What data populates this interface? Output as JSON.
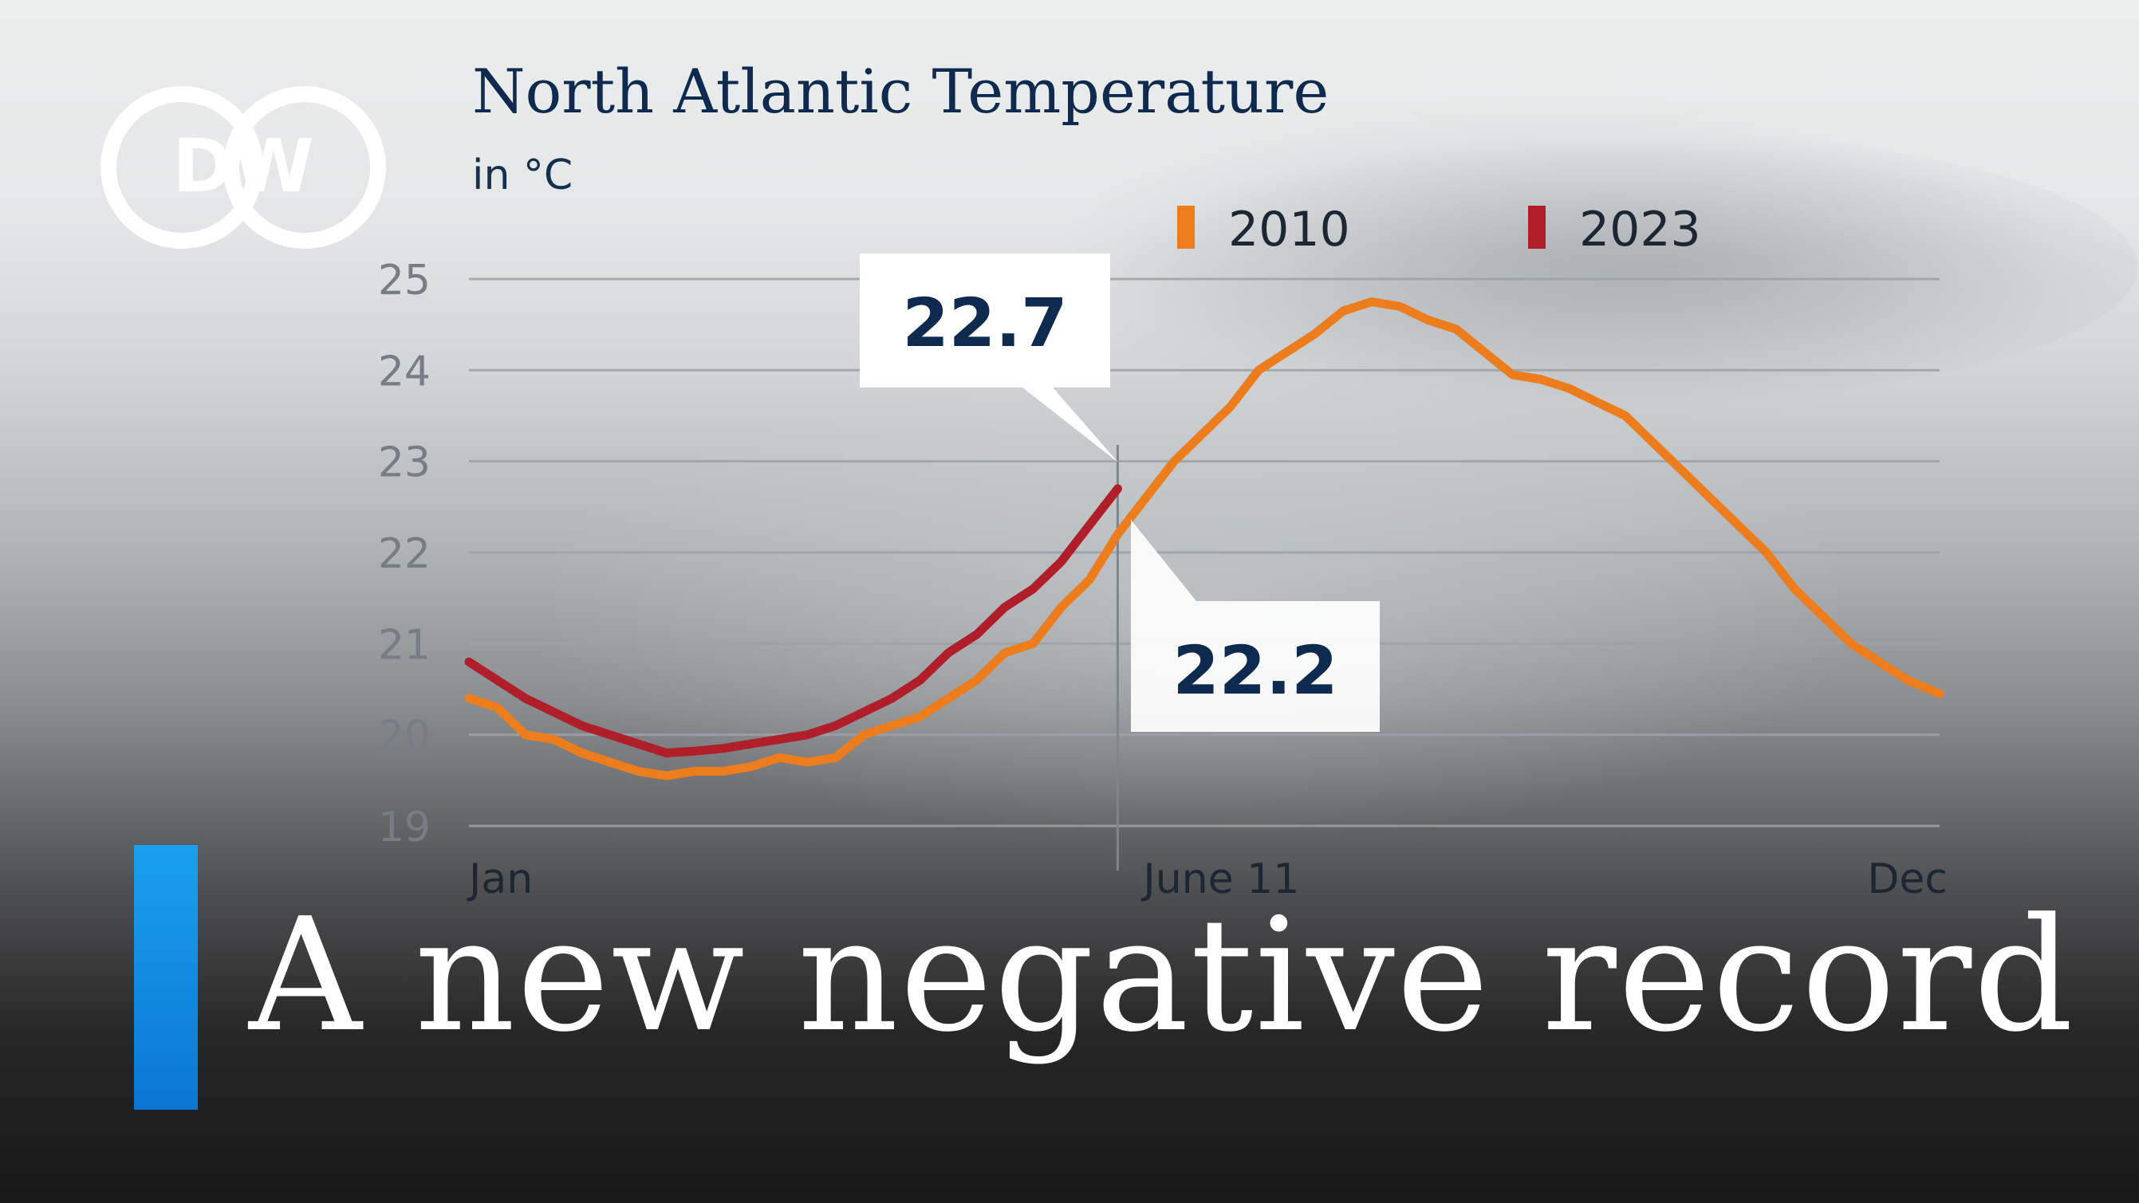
{
  "logo": {
    "text": "DW"
  },
  "headline": "A new negative record",
  "colors": {
    "series_2010": "#ed7d1c",
    "series_2023": "#b01e2a",
    "title": "#0e2a4f",
    "accent": "#0a90e6"
  },
  "chart_data": {
    "type": "line",
    "title": "North Atlantic Temperature",
    "unit": "in °C",
    "ylim": [
      19,
      25
    ],
    "yticks": [
      25,
      24,
      23,
      22,
      21,
      20,
      19
    ],
    "xticks": [
      {
        "label": "Jan",
        "day": 1
      },
      {
        "label": "June 11",
        "day": 162
      },
      {
        "label": "Dec",
        "day": 366
      }
    ],
    "grid": true,
    "legend_placement": "top-right",
    "marker_line": {
      "label": "June 11",
      "day": 162
    },
    "callouts": [
      {
        "series": "2023",
        "value": "22.7",
        "day": 162
      },
      {
        "series": "2010",
        "value": "22.2",
        "day": 162
      }
    ],
    "series": [
      {
        "name": "2010",
        "color": "#ed7d1c",
        "points": [
          [
            1,
            20.4
          ],
          [
            8,
            20.3
          ],
          [
            15,
            20.0
          ],
          [
            22,
            19.95
          ],
          [
            29,
            19.8
          ],
          [
            36,
            19.7
          ],
          [
            43,
            19.6
          ],
          [
            50,
            19.55
          ],
          [
            57,
            19.6
          ],
          [
            64,
            19.6
          ],
          [
            71,
            19.65
          ],
          [
            78,
            19.75
          ],
          [
            85,
            19.7
          ],
          [
            92,
            19.75
          ],
          [
            99,
            20.0
          ],
          [
            106,
            20.1
          ],
          [
            113,
            20.2
          ],
          [
            120,
            20.4
          ],
          [
            127,
            20.6
          ],
          [
            134,
            20.9
          ],
          [
            141,
            21.0
          ],
          [
            148,
            21.4
          ],
          [
            155,
            21.7
          ],
          [
            162,
            22.2
          ],
          [
            169,
            22.6
          ],
          [
            176,
            23.0
          ],
          [
            183,
            23.3
          ],
          [
            190,
            23.6
          ],
          [
            197,
            24.0
          ],
          [
            204,
            24.2
          ],
          [
            211,
            24.4
          ],
          [
            218,
            24.65
          ],
          [
            225,
            24.75
          ],
          [
            232,
            24.7
          ],
          [
            239,
            24.55
          ],
          [
            246,
            24.45
          ],
          [
            253,
            24.2
          ],
          [
            260,
            23.95
          ],
          [
            267,
            23.9
          ],
          [
            274,
            23.8
          ],
          [
            281,
            23.65
          ],
          [
            288,
            23.5
          ],
          [
            295,
            23.2
          ],
          [
            302,
            22.9
          ],
          [
            309,
            22.6
          ],
          [
            316,
            22.3
          ],
          [
            323,
            22.0
          ],
          [
            330,
            21.6
          ],
          [
            337,
            21.3
          ],
          [
            344,
            21.0
          ],
          [
            351,
            20.8
          ],
          [
            358,
            20.6
          ],
          [
            366,
            20.45
          ]
        ]
      },
      {
        "name": "2023",
        "color": "#b01e2a",
        "points": [
          [
            1,
            20.8
          ],
          [
            8,
            20.6
          ],
          [
            15,
            20.4
          ],
          [
            22,
            20.25
          ],
          [
            29,
            20.1
          ],
          [
            36,
            20.0
          ],
          [
            43,
            19.9
          ],
          [
            50,
            19.8
          ],
          [
            57,
            19.82
          ],
          [
            64,
            19.85
          ],
          [
            71,
            19.9
          ],
          [
            78,
            19.95
          ],
          [
            85,
            20.0
          ],
          [
            92,
            20.1
          ],
          [
            99,
            20.25
          ],
          [
            106,
            20.4
          ],
          [
            113,
            20.6
          ],
          [
            120,
            20.9
          ],
          [
            127,
            21.1
          ],
          [
            134,
            21.4
          ],
          [
            141,
            21.6
          ],
          [
            148,
            21.9
          ],
          [
            155,
            22.3
          ],
          [
            162,
            22.7
          ]
        ]
      }
    ]
  }
}
